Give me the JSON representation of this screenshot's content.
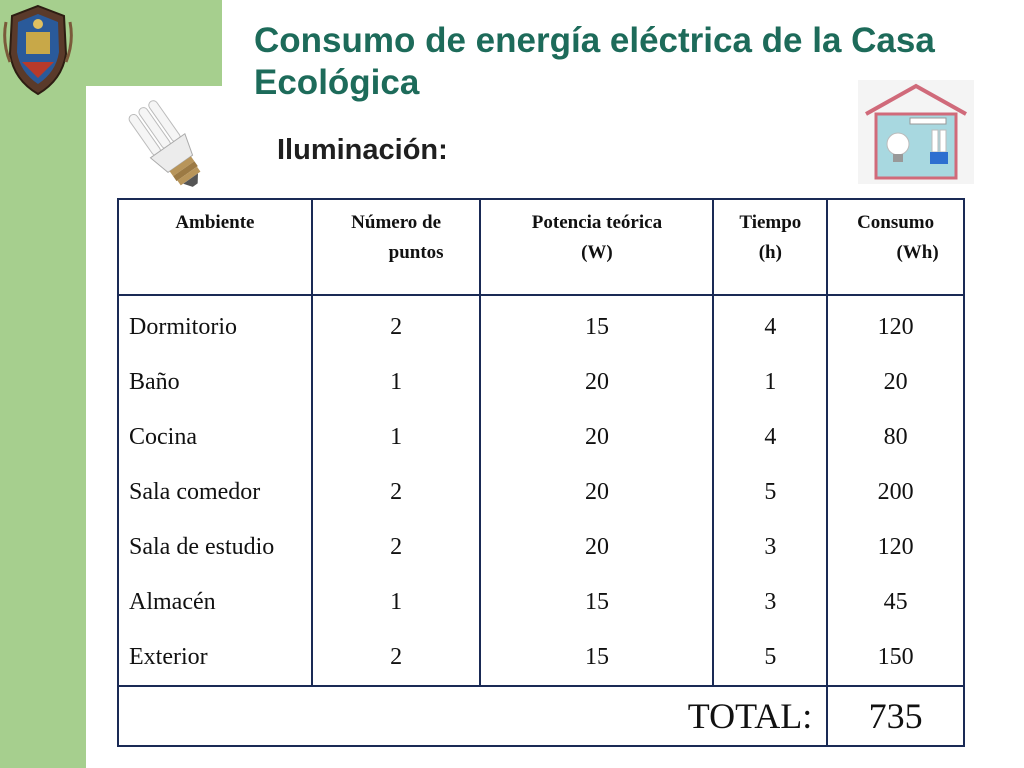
{
  "slide": {
    "title": "Consumo de energía eléctrica de la Casa Ecológica",
    "subtitle": "Iluminación:"
  },
  "colors": {
    "accent_green": "#a6cf8e",
    "title_color": "#1d6b5a",
    "table_border": "#1a2a55"
  },
  "icons": [
    "university-seal-icon",
    "energy-saving-bulb-icon",
    "house-lighting-icon"
  ],
  "table": {
    "headers": [
      [
        "Ambiente"
      ],
      [
        "Número de",
        "puntos"
      ],
      [
        "Potencia teórica",
        "(W)"
      ],
      [
        "Tiempo",
        "(h)"
      ],
      [
        "Consumo",
        "(Wh)"
      ]
    ],
    "rows": [
      [
        "Dormitorio",
        "2",
        "15",
        "4",
        "120"
      ],
      [
        "Baño",
        "1",
        "20",
        "1",
        "20"
      ],
      [
        "Cocina",
        "1",
        "20",
        "4",
        "80"
      ],
      [
        "Sala comedor",
        "2",
        "20",
        "5",
        "200"
      ],
      [
        "Sala de estudio",
        "2",
        "20",
        "3",
        "120"
      ],
      [
        "Almacén",
        "1",
        "15",
        "3",
        "45"
      ],
      [
        "Exterior",
        "2",
        "15",
        "5",
        "150"
      ]
    ],
    "total_label": "TOTAL:",
    "total_value": "735"
  }
}
